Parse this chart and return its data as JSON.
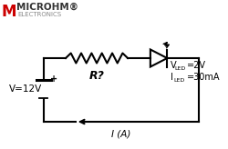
{
  "bg_color": "#ffffff",
  "logo_text_main": "MICROHM®",
  "logo_text_sub": "ELECTRONICS",
  "battery_label": "V=12V",
  "resistor_label": "R?",
  "vled_label": "V",
  "vled_sub": "LED",
  "vled_val": "=2V",
  "iled_label": "I",
  "iled_sub": "LED",
  "iled_val": "=30mA",
  "current_label": "I (A)",
  "circuit_color": "#000000",
  "battery_plus": "+",
  "logo_color_main": "#cc0000",
  "logo_color_sub": "#888888",
  "logo_text_color": "#333333"
}
